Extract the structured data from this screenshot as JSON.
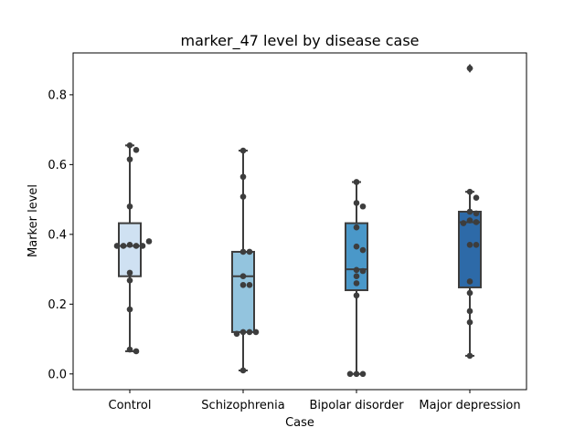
{
  "chart_data": {
    "type": "box",
    "title": "marker_47 level by disease case",
    "xlabel": "Case",
    "ylabel": "Marker level",
    "ylim": [
      -0.045,
      0.92
    ],
    "yticks": [
      "0.0",
      "0.2",
      "0.4",
      "0.6",
      "0.8"
    ],
    "grid": false,
    "categories": [
      "Control",
      "Schizophrenia",
      "Bipolar disorder",
      "Major depression"
    ],
    "colors": [
      "#cfe1f2",
      "#93c4de",
      "#4a98c9",
      "#2d6aa8"
    ],
    "edge_color": "#3d3d3d",
    "point_color": "#3d3d3d",
    "boxes": [
      {
        "name": "Control",
        "whislo": 0.065,
        "q1": 0.28,
        "med": 0.367,
        "q3": 0.432,
        "whishi": 0.655,
        "fliers": []
      },
      {
        "name": "Schizophrenia",
        "whislo": 0.01,
        "q1": 0.12,
        "med": 0.28,
        "q3": 0.35,
        "whishi": 0.64,
        "fliers": []
      },
      {
        "name": "Bipolar disorder",
        "whislo": 0.0,
        "q1": 0.24,
        "med": 0.3,
        "q3": 0.432,
        "whishi": 0.55,
        "fliers": []
      },
      {
        "name": "Major depression",
        "whislo": 0.052,
        "q1": 0.248,
        "med": 0.435,
        "q3": 0.465,
        "whishi": 0.522,
        "fliers": [
          0.876
        ]
      }
    ],
    "points": [
      [
        0.655,
        0.642,
        0.615,
        0.48,
        0.37,
        0.367,
        0.367,
        0.367,
        0.367,
        0.38,
        0.29,
        0.268,
        0.185,
        0.07,
        0.065
      ],
      [
        0.64,
        0.565,
        0.508,
        0.35,
        0.35,
        0.28,
        0.255,
        0.255,
        0.12,
        0.12,
        0.115,
        0.12,
        0.01
      ],
      [
        0.55,
        0.49,
        0.48,
        0.42,
        0.365,
        0.355,
        0.298,
        0.295,
        0.28,
        0.26,
        0.225,
        0.0,
        0.0,
        0.0
      ],
      [
        0.876,
        0.522,
        0.505,
        0.465,
        0.46,
        0.44,
        0.435,
        0.432,
        0.37,
        0.37,
        0.265,
        0.232,
        0.18,
        0.148,
        0.052
      ]
    ]
  }
}
